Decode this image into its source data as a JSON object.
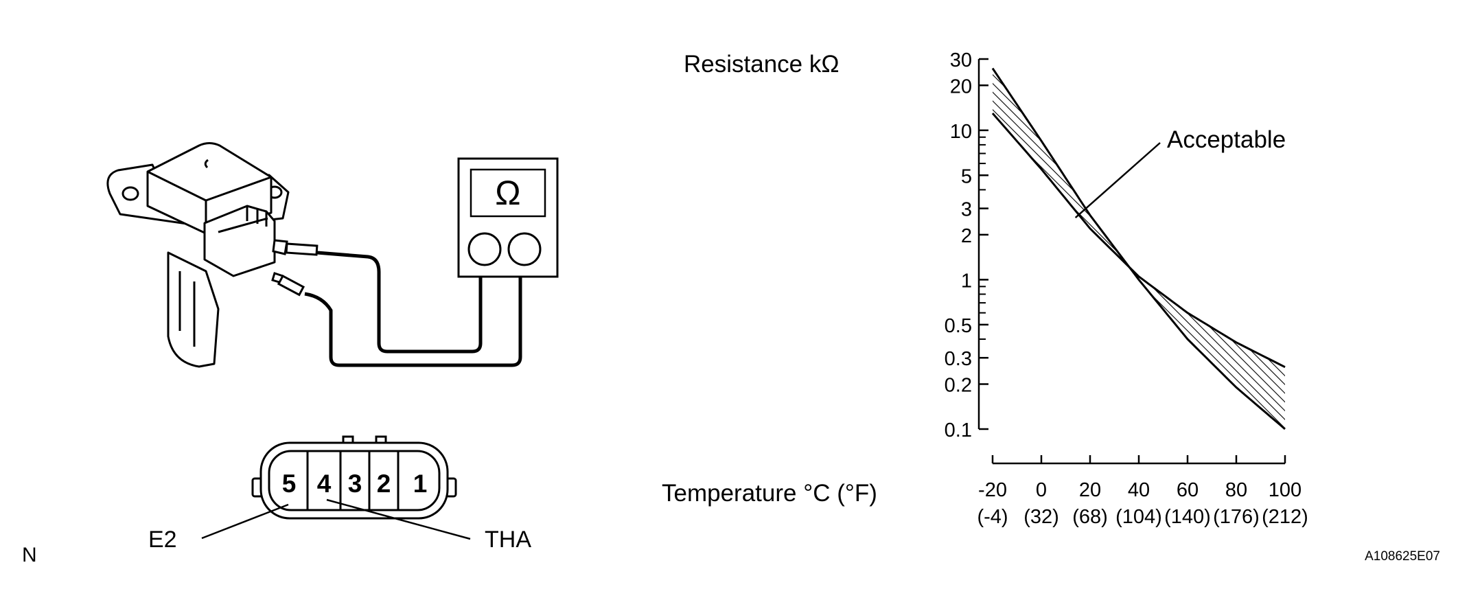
{
  "left_diagram": {
    "ohmmeter_symbol": "Ω",
    "pins": [
      "5",
      "4",
      "3",
      "2",
      "1"
    ],
    "label_e2": "E2",
    "label_tha": "THA",
    "corner_letter": "N"
  },
  "chart_data": {
    "type": "area",
    "title": "",
    "ylabel": "Resistance kΩ",
    "xlabel": "Temperature °C (°F)",
    "yscale": "log",
    "ylim": [
      0.1,
      30
    ],
    "xlim": [
      -20,
      100
    ],
    "y_ticks": [
      "30",
      "20",
      "10",
      "5",
      "3",
      "2",
      "1",
      "0.5",
      "0.3",
      "0.2",
      "0.1"
    ],
    "x_ticks": [
      {
        "c": "-20",
        "f": "(-4)"
      },
      {
        "c": "0",
        "f": "(32)"
      },
      {
        "c": "20",
        "f": "(68)"
      },
      {
        "c": "40",
        "f": "(104)"
      },
      {
        "c": "60",
        "f": "(140)"
      },
      {
        "c": "80",
        "f": "(176)"
      },
      {
        "c": "100",
        "f": "(212)"
      }
    ],
    "band_label": "Acceptable",
    "series": [
      {
        "values": [
          [
            -20,
            26
          ],
          [
            0,
            8.5
          ],
          [
            20,
            2.7
          ],
          [
            40,
            1.0
          ],
          [
            60,
            0.4
          ],
          [
            80,
            0.19
          ],
          [
            100,
            0.1
          ]
        ]
      },
      {
        "values": [
          [
            -20,
            13
          ],
          [
            0,
            5.5
          ],
          [
            20,
            2.2
          ],
          [
            40,
            1.05
          ],
          [
            60,
            0.6
          ],
          [
            80,
            0.38
          ],
          [
            100,
            0.26
          ]
        ]
      }
    ]
  },
  "figure_code": "A108625E07"
}
